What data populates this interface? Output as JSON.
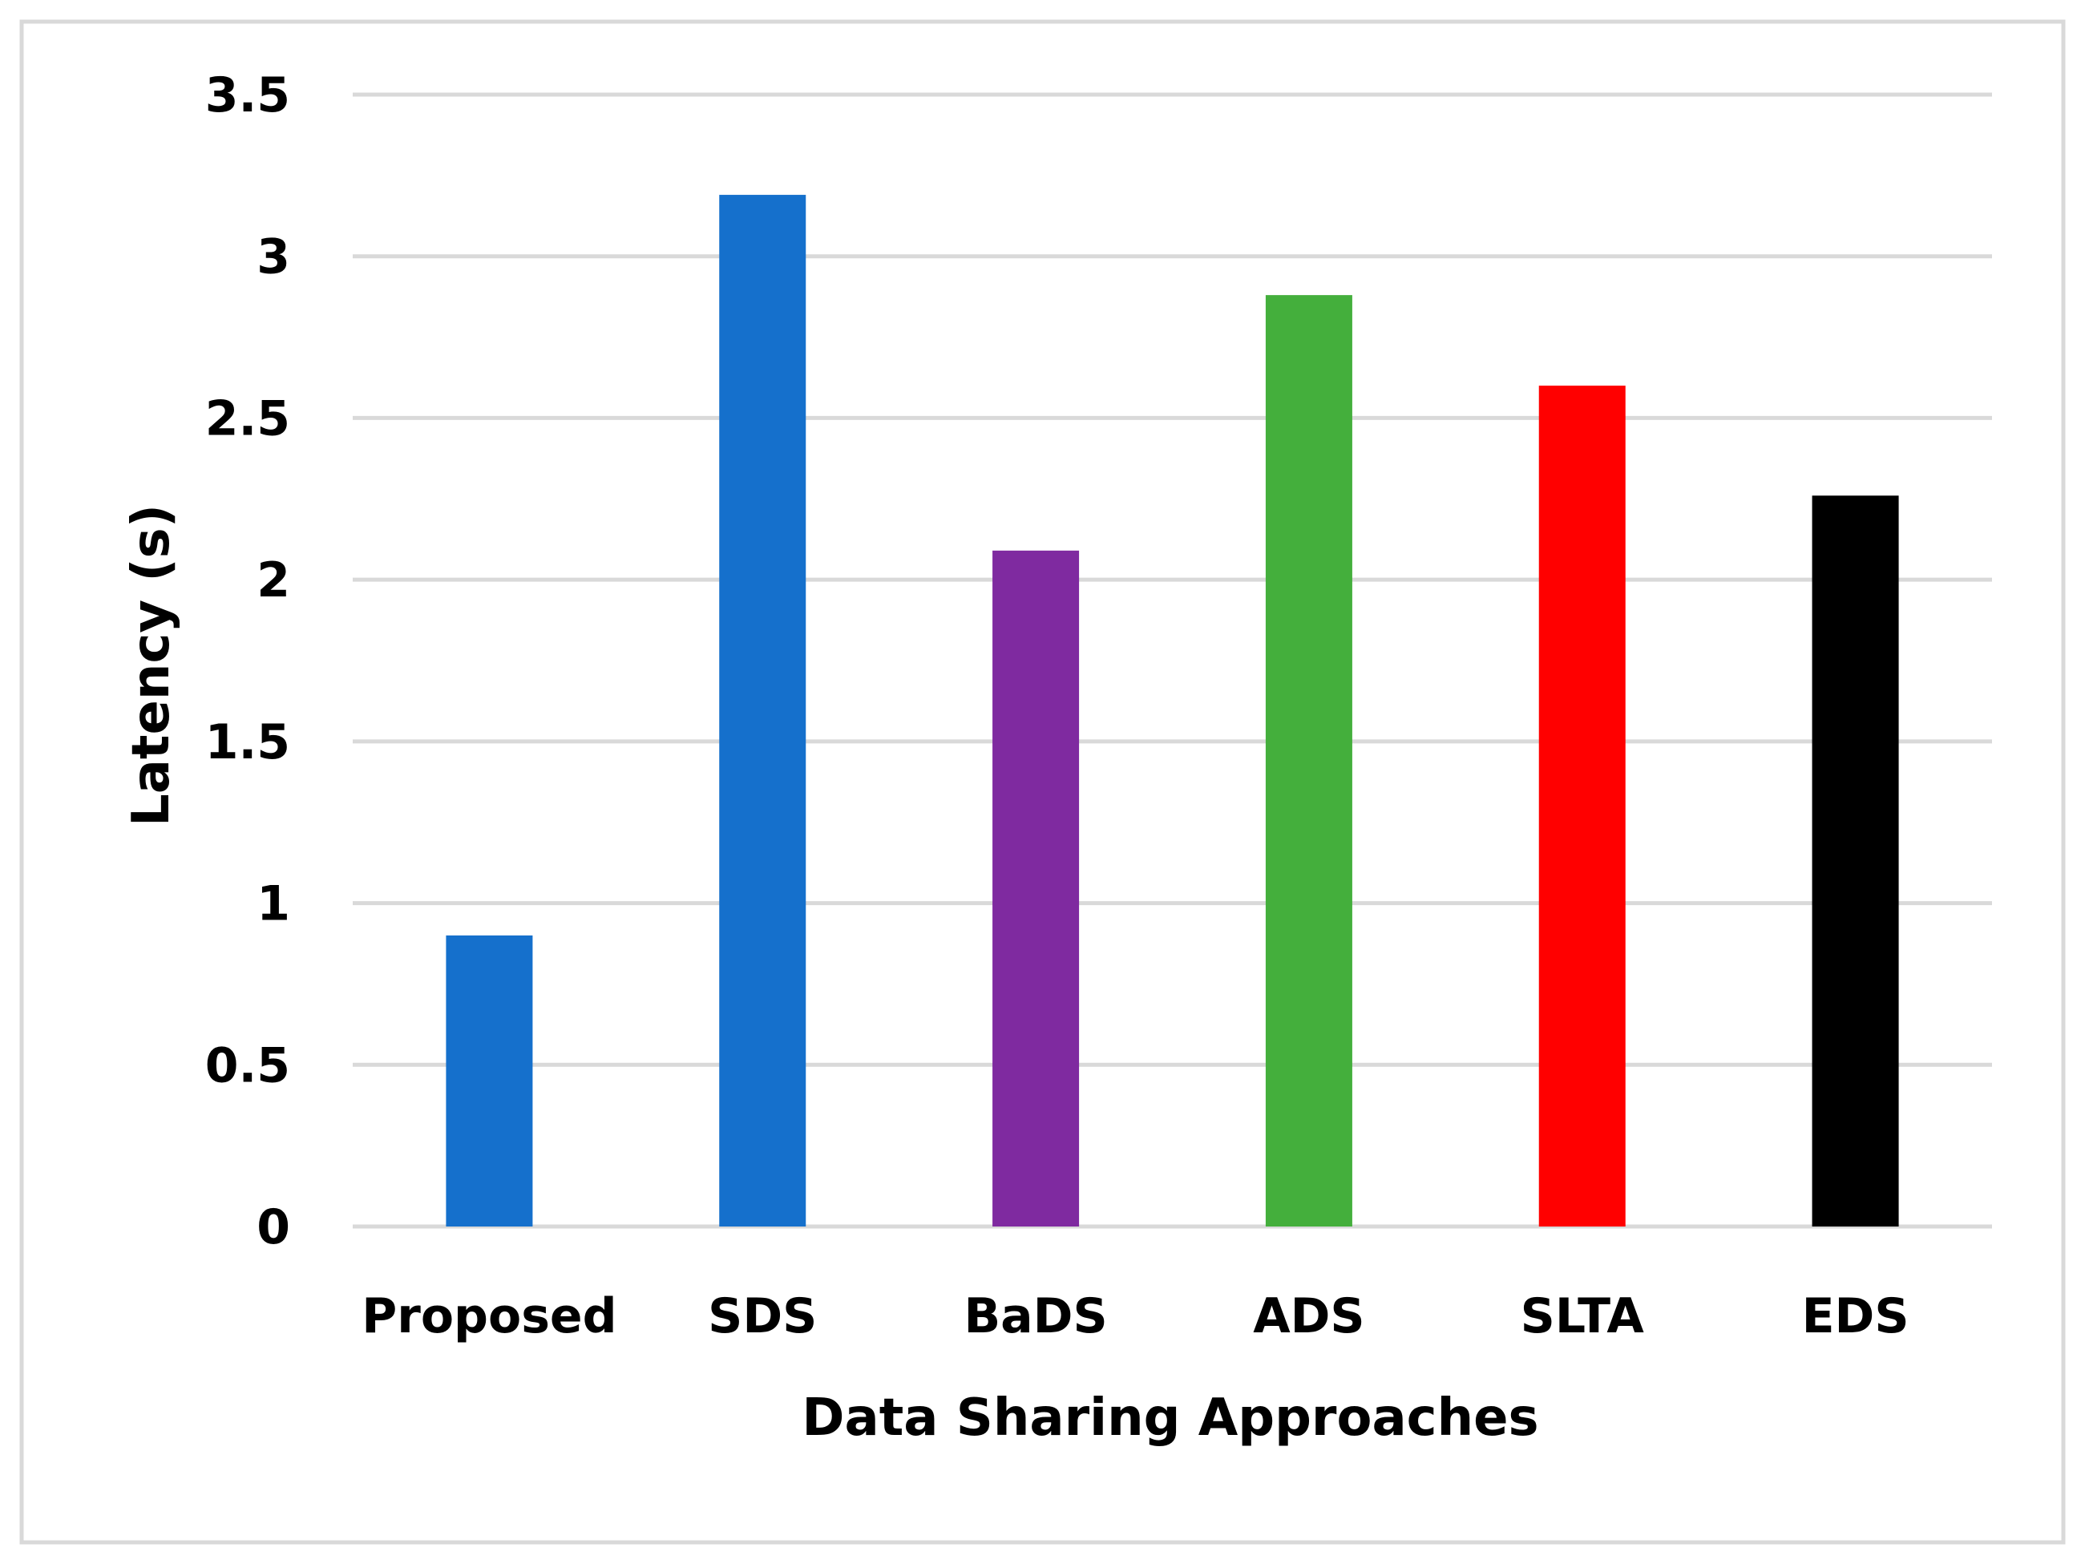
{
  "chart_data": {
    "type": "bar",
    "title": "",
    "xlabel": "Data Sharing Approaches",
    "ylabel": "Latency (s)",
    "categories": [
      "Proposed",
      "SDS",
      "BaDS",
      "ADS",
      "SLTA",
      "EDS"
    ],
    "values": [
      0.9,
      3.19,
      2.09,
      2.88,
      2.6,
      2.26
    ],
    "bar_colors": [
      "#1570CC",
      "#1570CC",
      "#7F2AA0",
      "#44AF3C",
      "#FF0000",
      "#000000"
    ],
    "ylim": [
      0,
      3.5
    ],
    "yticks": [
      "0",
      "0.5",
      "1",
      "1.5",
      "2",
      "2.5",
      "3",
      "3.5"
    ],
    "grid": true,
    "legend": "none"
  }
}
